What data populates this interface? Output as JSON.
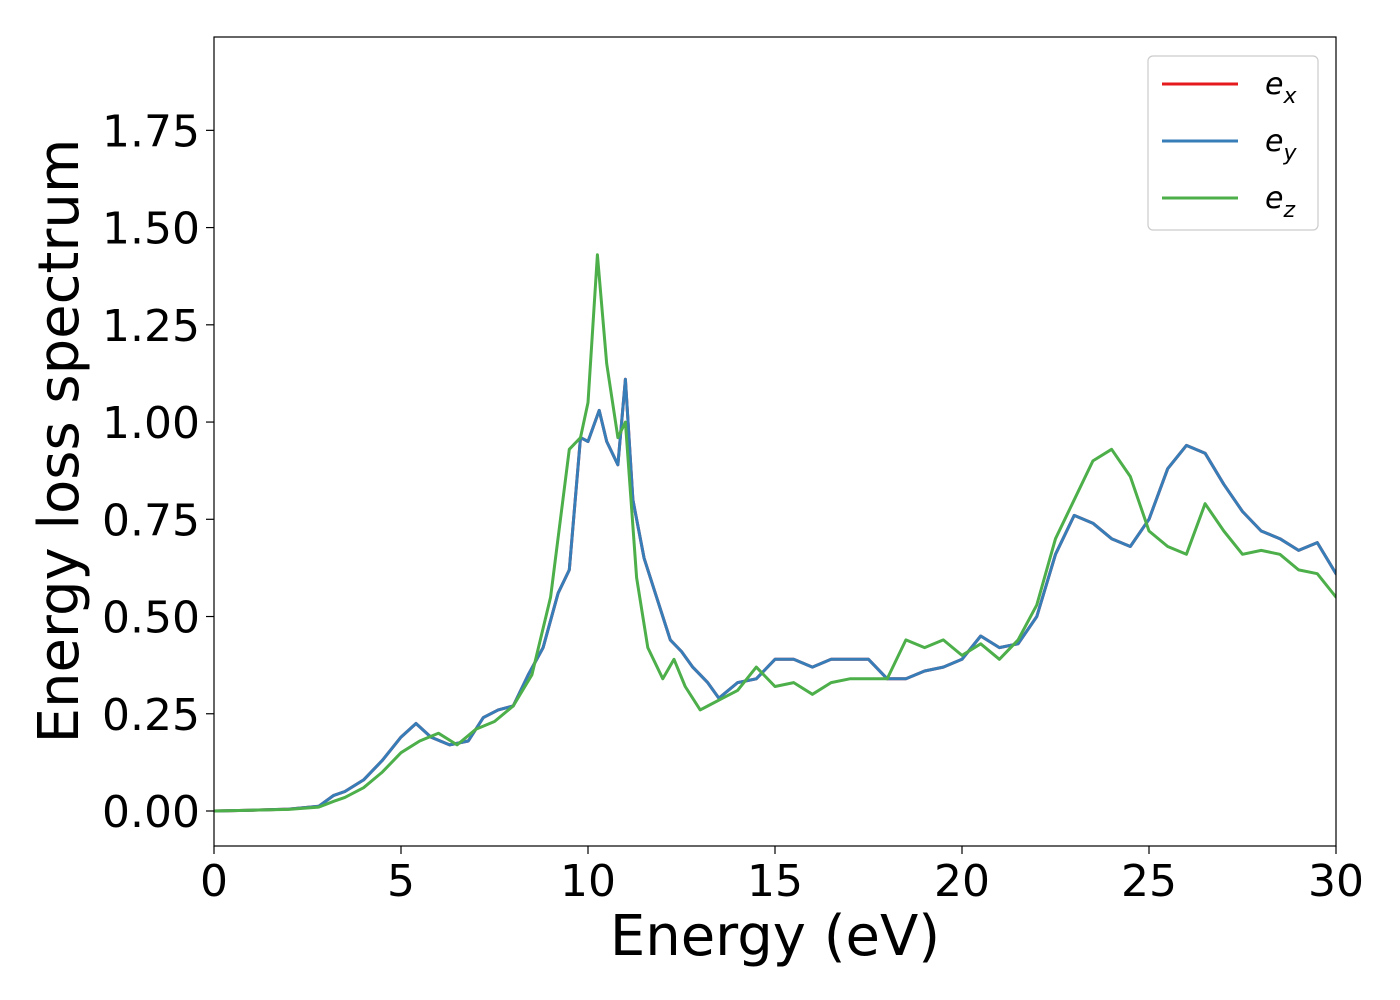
{
  "chart_data": {
    "type": "line",
    "xlabel": "Energy (eV)",
    "ylabel": "Energy loss spectrum",
    "xlim": [
      0,
      30
    ],
    "ylim": [
      -0.09,
      1.99
    ],
    "x_ticks": [
      "0",
      "5",
      "10",
      "15",
      "20",
      "25",
      "30"
    ],
    "x_tick_values": [
      0,
      5,
      10,
      15,
      20,
      25,
      30
    ],
    "y_ticks": [
      "0.00",
      "0.25",
      "0.50",
      "0.75",
      "1.00",
      "1.25",
      "1.50",
      "1.75"
    ],
    "y_tick_values": [
      0,
      0.25,
      0.5,
      0.75,
      1.0,
      1.25,
      1.5,
      1.75
    ],
    "grid": false,
    "legend_position": "top-right",
    "series": [
      {
        "name": "e",
        "subscript": "x",
        "color": "#e41a1c",
        "x": [
          0,
          1,
          2,
          2.8,
          3.2,
          3.5,
          4.0,
          4.5,
          5.0,
          5.4,
          5.8,
          6.3,
          6.8,
          7.2,
          7.6,
          8.0,
          8.4,
          8.8,
          9.2,
          9.5,
          9.8,
          10.0,
          10.3,
          10.5,
          10.8,
          11.0,
          11.2,
          11.5,
          11.8,
          12.2,
          12.5,
          12.8,
          13.2,
          13.5,
          14.0,
          14.5,
          15.0,
          15.5,
          16.0,
          16.5,
          17.0,
          17.5,
          18.0,
          18.5,
          19.0,
          19.5,
          20.0,
          20.5,
          21.0,
          21.5,
          22.0,
          22.5,
          23.0,
          23.5,
          24.0,
          24.5,
          25.0,
          25.5,
          26.0,
          26.5,
          27.0,
          27.5,
          28.0,
          28.5,
          29.0,
          29.5,
          30.0
        ],
        "y": [
          0.0,
          0.002,
          0.005,
          0.012,
          0.04,
          0.05,
          0.08,
          0.13,
          0.19,
          0.225,
          0.19,
          0.17,
          0.18,
          0.24,
          0.26,
          0.27,
          0.35,
          0.42,
          0.56,
          0.62,
          0.96,
          0.95,
          1.03,
          0.95,
          0.89,
          1.11,
          0.8,
          0.65,
          0.56,
          0.44,
          0.41,
          0.37,
          0.33,
          0.29,
          0.33,
          0.34,
          0.39,
          0.39,
          0.37,
          0.39,
          0.39,
          0.39,
          0.34,
          0.34,
          0.36,
          0.37,
          0.39,
          0.45,
          0.42,
          0.43,
          0.5,
          0.66,
          0.76,
          0.74,
          0.7,
          0.68,
          0.75,
          0.88,
          0.94,
          0.92,
          0.84,
          0.77,
          0.72,
          0.7,
          0.67,
          0.69,
          0.61
        ]
      },
      {
        "name": "e",
        "subscript": "y",
        "color": "#377eb8",
        "x": [
          0,
          1,
          2,
          2.8,
          3.2,
          3.5,
          4.0,
          4.5,
          5.0,
          5.4,
          5.8,
          6.3,
          6.8,
          7.2,
          7.6,
          8.0,
          8.4,
          8.8,
          9.2,
          9.5,
          9.8,
          10.0,
          10.3,
          10.5,
          10.8,
          11.0,
          11.2,
          11.5,
          11.8,
          12.2,
          12.5,
          12.8,
          13.2,
          13.5,
          14.0,
          14.5,
          15.0,
          15.5,
          16.0,
          16.5,
          17.0,
          17.5,
          18.0,
          18.5,
          19.0,
          19.5,
          20.0,
          20.5,
          21.0,
          21.5,
          22.0,
          22.5,
          23.0,
          23.5,
          24.0,
          24.5,
          25.0,
          25.5,
          26.0,
          26.5,
          27.0,
          27.5,
          28.0,
          28.5,
          29.0,
          29.5,
          30.0
        ],
        "y": [
          0.0,
          0.002,
          0.005,
          0.012,
          0.04,
          0.05,
          0.08,
          0.13,
          0.19,
          0.225,
          0.19,
          0.17,
          0.18,
          0.24,
          0.26,
          0.27,
          0.35,
          0.42,
          0.56,
          0.62,
          0.96,
          0.95,
          1.03,
          0.95,
          0.89,
          1.11,
          0.8,
          0.65,
          0.56,
          0.44,
          0.41,
          0.37,
          0.33,
          0.29,
          0.33,
          0.34,
          0.39,
          0.39,
          0.37,
          0.39,
          0.39,
          0.39,
          0.34,
          0.34,
          0.36,
          0.37,
          0.39,
          0.45,
          0.42,
          0.43,
          0.5,
          0.66,
          0.76,
          0.74,
          0.7,
          0.68,
          0.75,
          0.88,
          0.94,
          0.92,
          0.84,
          0.77,
          0.72,
          0.7,
          0.67,
          0.69,
          0.61
        ]
      },
      {
        "name": "e",
        "subscript": "z",
        "color": "#4daf4a",
        "x": [
          0,
          1,
          2,
          2.8,
          3.2,
          3.5,
          4.0,
          4.5,
          5.0,
          5.5,
          6.0,
          6.5,
          7.0,
          7.5,
          8.0,
          8.5,
          9.0,
          9.5,
          9.8,
          10.0,
          10.25,
          10.5,
          10.8,
          11.0,
          11.3,
          11.6,
          12.0,
          12.3,
          12.6,
          13.0,
          13.2,
          13.6,
          14.0,
          14.5,
          15.0,
          15.5,
          16.0,
          16.5,
          17.0,
          17.5,
          18.0,
          18.5,
          19.0,
          19.5,
          20.0,
          20.5,
          21.0,
          21.5,
          22.0,
          22.5,
          23.0,
          23.5,
          24.0,
          24.5,
          25.0,
          25.5,
          26.0,
          26.5,
          27.0,
          27.5,
          28.0,
          28.5,
          29.0,
          29.5,
          30.0
        ],
        "y": [
          0.0,
          0.002,
          0.004,
          0.01,
          0.025,
          0.035,
          0.06,
          0.1,
          0.15,
          0.18,
          0.2,
          0.17,
          0.21,
          0.23,
          0.27,
          0.35,
          0.55,
          0.93,
          0.96,
          1.05,
          1.43,
          1.15,
          0.96,
          1.0,
          0.6,
          0.42,
          0.34,
          0.39,
          0.32,
          0.26,
          0.27,
          0.29,
          0.31,
          0.37,
          0.32,
          0.33,
          0.3,
          0.33,
          0.34,
          0.34,
          0.34,
          0.44,
          0.42,
          0.44,
          0.4,
          0.43,
          0.39,
          0.44,
          0.53,
          0.7,
          0.8,
          0.9,
          0.93,
          0.86,
          0.72,
          0.68,
          0.66,
          0.79,
          0.72,
          0.66,
          0.67,
          0.66,
          0.62,
          0.61,
          0.55
        ]
      }
    ]
  }
}
